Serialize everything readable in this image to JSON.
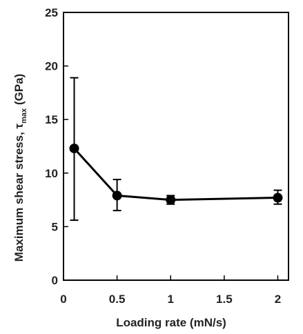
{
  "chart_data": {
    "type": "line",
    "xlabel": "Loading rate (mN/s)",
    "ylabel": {
      "main": "Maximum shear stress, τ",
      "sub": "max",
      "unit": " (GPa)"
    },
    "xlim": [
      0,
      2.1
    ],
    "ylim": [
      0,
      25
    ],
    "xticks": [
      "0",
      "0.5",
      "1",
      "1.5",
      "2"
    ],
    "xtick_values": [
      0,
      0.5,
      1,
      1.5,
      2
    ],
    "yticks": [
      "0",
      "5",
      "10",
      "15",
      "20",
      "25"
    ],
    "ytick_values": [
      0,
      5,
      10,
      15,
      20,
      25
    ],
    "grid": false,
    "legend": "none",
    "series": [
      {
        "x": [
          0.1,
          0.5,
          1,
          2
        ],
        "y": [
          12.3,
          7.9,
          7.5,
          7.7
        ],
        "error_low": [
          5.6,
          6.5,
          7.1,
          7.1
        ],
        "error_high": [
          18.9,
          9.4,
          7.9,
          8.4
        ],
        "color": "#000000"
      }
    ]
  }
}
